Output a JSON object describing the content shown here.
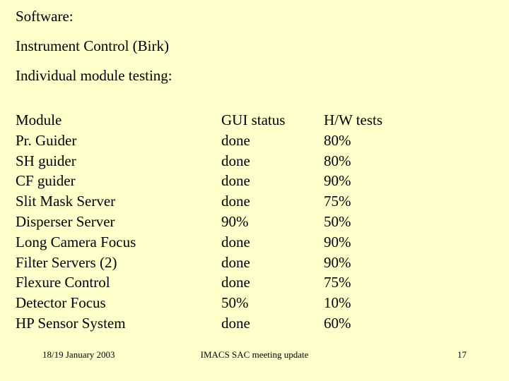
{
  "slide": {
    "background_color": "#FFFFCC",
    "text_color": "#000000",
    "intro_lines": [
      "Software:",
      "Instrument Control (Birk)",
      "Individual module testing:"
    ],
    "table": {
      "headers": [
        "Module",
        "GUI status",
        "H/W tests"
      ],
      "rows": [
        {
          "module": "Pr. Guider",
          "gui_status": "done",
          "hw_tests": "80%"
        },
        {
          "module": "SH guider",
          "gui_status": "done",
          "hw_tests": "80%"
        },
        {
          "module": "CF guider",
          "gui_status": "done",
          "hw_tests": "90%"
        },
        {
          "module": "Slit Mask Server",
          "gui_status": "done",
          "hw_tests": "75%"
        },
        {
          "module": "Disperser Server",
          "gui_status": "90%",
          "hw_tests": "50%"
        },
        {
          "module": "Long Camera Focus",
          "gui_status": "done",
          "hw_tests": "90%"
        },
        {
          "module": "Filter Servers (2)",
          "gui_status": "done",
          "hw_tests": "90%"
        },
        {
          "module": "Flexure Control",
          "gui_status": "done",
          "hw_tests": "75%"
        },
        {
          "module": "Detector Focus",
          "gui_status": "50%",
          "hw_tests": "10%"
        },
        {
          "module": "HP Sensor System",
          "gui_status": "done",
          "hw_tests": "60%"
        }
      ]
    },
    "footer": {
      "date": "18/19 January 2003",
      "title": "IMACS SAC meeting update",
      "page_number": "17"
    }
  }
}
